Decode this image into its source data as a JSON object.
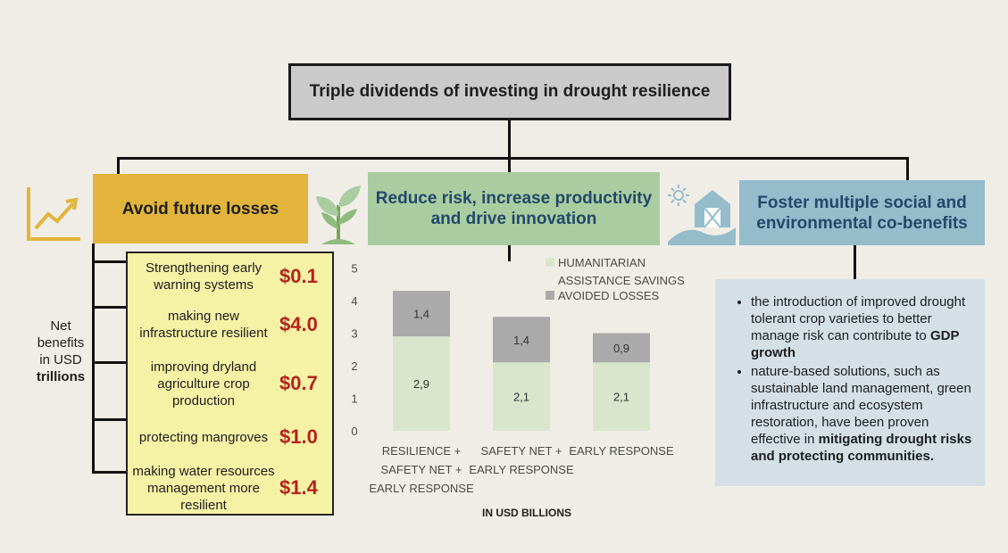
{
  "title": "Triple dividends of investing in drought resilience",
  "pillars": [
    {
      "label": "Avoid future losses"
    },
    {
      "label": "Reduce risk, increase productivity and drive innovation"
    },
    {
      "label": "Foster multiple social and environmental co-benefits"
    }
  ],
  "net_benefits": {
    "line1": "Net",
    "line2": "benefits",
    "line3": "in USD",
    "line4": "trillions"
  },
  "losses": [
    {
      "text": "Strengthening early warning systems",
      "value": "$0.1"
    },
    {
      "text": "making new infrastructure resilient",
      "value": "$4.0"
    },
    {
      "text": "improving dryland agriculture crop production",
      "value": "$0.7"
    },
    {
      "text": "protecting mangroves",
      "value": "$1.0"
    },
    {
      "text": "making water resources management more resilient",
      "value": "$1.4"
    }
  ],
  "co_benefits": {
    "item1_text": "the introduction of improved drought tolerant crop varieties to better manage risk can contribute to ",
    "item1_bold": "GDP growth",
    "item2_text": "nature-based solutions, such as sustainable land management, green infrastructure and ecosystem restoration, have been proven effective in ",
    "item2_bold": "mitigating drought risks and protecting communities."
  },
  "colors": {
    "pillar1": "#e2b43c",
    "pillar2": "#a9cda0",
    "pillar3": "#94bccb",
    "humanitarian": "#d9e6cc",
    "avoided": "#aaaaaa",
    "value_red": "#b5231c"
  },
  "icons": [
    "chart-growth-icon",
    "plant-sprout-icon",
    "farm-barn-icon"
  ],
  "chart_data": {
    "type": "bar",
    "stacked": true,
    "categories": [
      [
        "RESILIENCE +",
        "SAFETY NET +",
        "EARLY RESPONSE"
      ],
      [
        "SAFETY NET +",
        "EARLY RESPONSE"
      ],
      [
        "EARLY RESPONSE"
      ]
    ],
    "series": [
      {
        "name": "HUMANITARIAN ASSISTANCE SAVINGS",
        "values": [
          2.9,
          2.1,
          2.1
        ],
        "labels": [
          "2,9",
          "2,1",
          "2,1"
        ]
      },
      {
        "name": "AVOIDED LOSSES",
        "values": [
          1.4,
          1.4,
          0.9
        ],
        "labels": [
          "1,4",
          "1,4",
          "0,9"
        ]
      }
    ],
    "legend_lines": [
      "HUMANITARIAN",
      "ASSISTANCE SAVINGS",
      "AVOIDED LOSSES"
    ],
    "xlabel": "IN USD BILLIONS",
    "ylim": [
      0,
      5
    ],
    "yticks": [
      0,
      1,
      2,
      3,
      4,
      5
    ],
    "grid": false,
    "legend_position": "top-right"
  }
}
